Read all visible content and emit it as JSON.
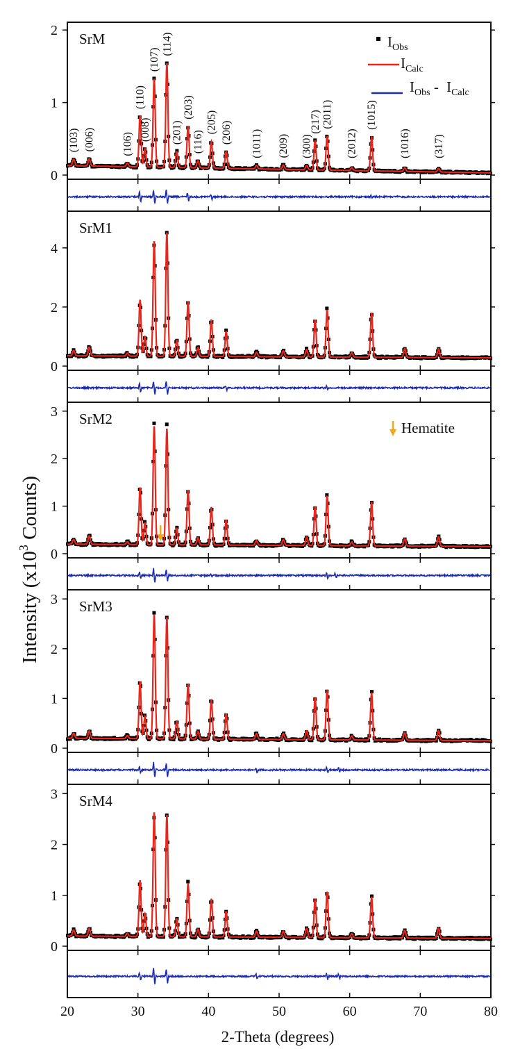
{
  "figure": {
    "y_axis_label": {
      "prefix": "Intensity (x10",
      "exponent": "3",
      "suffix": " Counts)"
    },
    "x_axis_label": "2-Theta (degrees)"
  },
  "legend": {
    "obs": {
      "base": "I",
      "sub": "Obs"
    },
    "calc": {
      "base": "I",
      "sub": "Calc"
    },
    "diff": {
      "a_base": "I",
      "a_sub": "Obs",
      "sep": " - ",
      "b_base": "I",
      "b_sub": "Calc"
    },
    "hematite": "Hematite"
  },
  "colors": {
    "obs": "#000000",
    "calc": "#e8261c",
    "diff": "#1c2bb0",
    "hematite": "#f0a81c",
    "frame": "#111111"
  },
  "chart_data": {
    "type": "scatter",
    "x": {
      "label": "2-Theta (degrees)",
      "range": [
        20,
        80
      ],
      "ticks": [
        20,
        30,
        40,
        50,
        60,
        70,
        80
      ],
      "tick_labels": [
        "20",
        "30",
        "40",
        "50",
        "60",
        "70",
        "80"
      ]
    },
    "peaks": [
      {
        "hkl": "(103)",
        "two_theta": 20.9,
        "label": "(103)"
      },
      {
        "hkl": "(006)",
        "two_theta": 23.1,
        "label": "(006)"
      },
      {
        "hkl": "(106)",
        "two_theta": 28.5,
        "label": "(106)"
      },
      {
        "hkl": "(110)",
        "two_theta": 30.3,
        "label": "(110)"
      },
      {
        "hkl": "(008)",
        "two_theta": 31.0,
        "label": "(008)"
      },
      {
        "hkl": "(107)",
        "two_theta": 32.3,
        "label": "(107)"
      },
      {
        "hkl": "(114)",
        "two_theta": 34.1,
        "label": "(114)"
      },
      {
        "hkl": "(201)",
        "two_theta": 35.5,
        "label": "(201)"
      },
      {
        "hkl": "(203)",
        "two_theta": 37.1,
        "label": "(203)"
      },
      {
        "hkl": "(116)",
        "two_theta": 38.5,
        "label": "(116)"
      },
      {
        "hkl": "(205)",
        "two_theta": 40.4,
        "label": "(205)"
      },
      {
        "hkl": "(206)",
        "two_theta": 42.5,
        "label": "(206)"
      },
      {
        "hkl": "(1011)",
        "two_theta": 46.8,
        "label": "(1011)"
      },
      {
        "hkl": "(209)",
        "two_theta": 50.6,
        "label": "(209)"
      },
      {
        "hkl": "(300)",
        "two_theta": 53.9,
        "label": "(300)"
      },
      {
        "hkl": "(217)",
        "two_theta": 55.1,
        "label": "(217)"
      },
      {
        "hkl": "(2011)",
        "two_theta": 56.8,
        "label": "(2011)"
      },
      {
        "hkl": "(2012)",
        "two_theta": 60.3,
        "label": "(2012)"
      },
      {
        "hkl": "(1015)",
        "two_theta": 63.1,
        "label": "(1015)"
      },
      {
        "hkl": "(1016)",
        "two_theta": 67.8,
        "label": "(1016)"
      },
      {
        "hkl": "(317)",
        "two_theta": 72.6,
        "label": "(317)"
      }
    ],
    "panels": [
      {
        "sample": "SrM",
        "ylim": [
          0,
          2.05
        ],
        "yticks": [
          0,
          1,
          2
        ],
        "ytick_labels": [
          "0",
          "1",
          "2"
        ],
        "background": {
          "start": 0.13,
          "end": 0.03
        },
        "peak_intensities": [
          0.09,
          0.1,
          0.05,
          0.7,
          0.25,
          1.22,
          1.44,
          0.22,
          0.57,
          0.1,
          0.37,
          0.23,
          0.05,
          0.06,
          0.06,
          0.4,
          0.47,
          0.04,
          0.47,
          0.05,
          0.05
        ],
        "diff_spikes": [
          {
            "two_theta": 30.3,
            "amp": 0.5
          },
          {
            "two_theta": 32.3,
            "amp": 0.6
          },
          {
            "two_theta": 34.1,
            "amp": 0.7
          },
          {
            "two_theta": 37.1,
            "amp": 0.35
          },
          {
            "two_theta": 40.4,
            "amp": 0.25
          },
          {
            "two_theta": 63.1,
            "amp": 0.1
          }
        ]
      },
      {
        "sample": "SrM1",
        "ylim": [
          0,
          5.1
        ],
        "yticks": [
          0,
          2,
          4
        ],
        "ytick_labels": [
          "0",
          "2",
          "4"
        ],
        "background": {
          "start": 0.35,
          "end": 0.28
        },
        "peak_intensities": [
          0.18,
          0.3,
          0.1,
          1.9,
          0.65,
          3.9,
          4.2,
          0.55,
          1.85,
          0.3,
          1.25,
          0.85,
          0.15,
          0.2,
          0.25,
          1.25,
          1.6,
          0.15,
          1.5,
          0.3,
          0.3
        ],
        "diff_spikes": [
          {
            "two_theta": 30.3,
            "amp": 0.4
          },
          {
            "two_theta": 32.3,
            "amp": 0.6
          },
          {
            "two_theta": 34.1,
            "amp": 0.6
          },
          {
            "two_theta": 42.5,
            "amp": 0.2
          },
          {
            "two_theta": 56.8,
            "amp": 0.15
          }
        ]
      },
      {
        "sample": "SrM2",
        "ylim": [
          0,
          3.1
        ],
        "yticks": [
          0,
          1,
          2,
          3
        ],
        "ytick_labels": [
          "0",
          "1",
          "2",
          "3"
        ],
        "background": {
          "start": 0.2,
          "end": 0.15
        },
        "peak_intensities": [
          0.1,
          0.18,
          0.06,
          1.2,
          0.45,
          2.5,
          2.45,
          0.35,
          1.15,
          0.15,
          0.8,
          0.52,
          0.1,
          0.12,
          0.18,
          0.82,
          1.05,
          0.08,
          0.92,
          0.15,
          0.2
        ],
        "hematite_at": 33.2,
        "diff_spikes": [
          {
            "two_theta": 30.3,
            "amp": 0.3
          },
          {
            "two_theta": 32.3,
            "amp": 0.7
          },
          {
            "two_theta": 34.1,
            "amp": 0.6
          },
          {
            "two_theta": 40.4,
            "amp": 0.2
          },
          {
            "two_theta": 56.8,
            "amp": 0.25
          },
          {
            "two_theta": 58.0,
            "amp": 0.2
          }
        ]
      },
      {
        "sample": "SrM3",
        "ylim": [
          0,
          3.1
        ],
        "yticks": [
          0,
          1,
          2,
          3
        ],
        "ytick_labels": [
          "0",
          "1",
          "2",
          "3"
        ],
        "background": {
          "start": 0.2,
          "end": 0.15
        },
        "peak_intensities": [
          0.1,
          0.15,
          0.06,
          1.15,
          0.45,
          2.5,
          2.45,
          0.35,
          1.1,
          0.15,
          0.8,
          0.5,
          0.12,
          0.12,
          0.18,
          0.85,
          1.0,
          0.08,
          0.95,
          0.15,
          0.2
        ],
        "diff_spikes": [
          {
            "two_theta": 30.3,
            "amp": 0.3
          },
          {
            "two_theta": 32.3,
            "amp": 0.7
          },
          {
            "two_theta": 34.1,
            "amp": 0.6
          },
          {
            "two_theta": 46.8,
            "amp": 0.2
          },
          {
            "two_theta": 56.8,
            "amp": 0.25
          },
          {
            "two_theta": 58.5,
            "amp": 0.2
          }
        ]
      },
      {
        "sample": "SrM4",
        "ylim": [
          0,
          3.1
        ],
        "yticks": [
          0,
          1,
          2,
          3
        ],
        "ytick_labels": [
          "0",
          "1",
          "2",
          "3"
        ],
        "background": {
          "start": 0.2,
          "end": 0.15
        },
        "peak_intensities": [
          0.12,
          0.15,
          0.06,
          1.1,
          0.45,
          2.45,
          2.4,
          0.35,
          1.05,
          0.15,
          0.75,
          0.5,
          0.12,
          0.12,
          0.18,
          0.75,
          0.9,
          0.08,
          0.8,
          0.15,
          0.2
        ],
        "diff_spikes": [
          {
            "two_theta": 30.3,
            "amp": 0.3
          },
          {
            "two_theta": 32.3,
            "amp": 0.8
          },
          {
            "two_theta": 34.1,
            "amp": 0.6
          },
          {
            "two_theta": 46.8,
            "amp": 0.2
          },
          {
            "two_theta": 56.8,
            "amp": 0.3
          },
          {
            "two_theta": 58.5,
            "amp": 0.2
          }
        ]
      }
    ]
  }
}
